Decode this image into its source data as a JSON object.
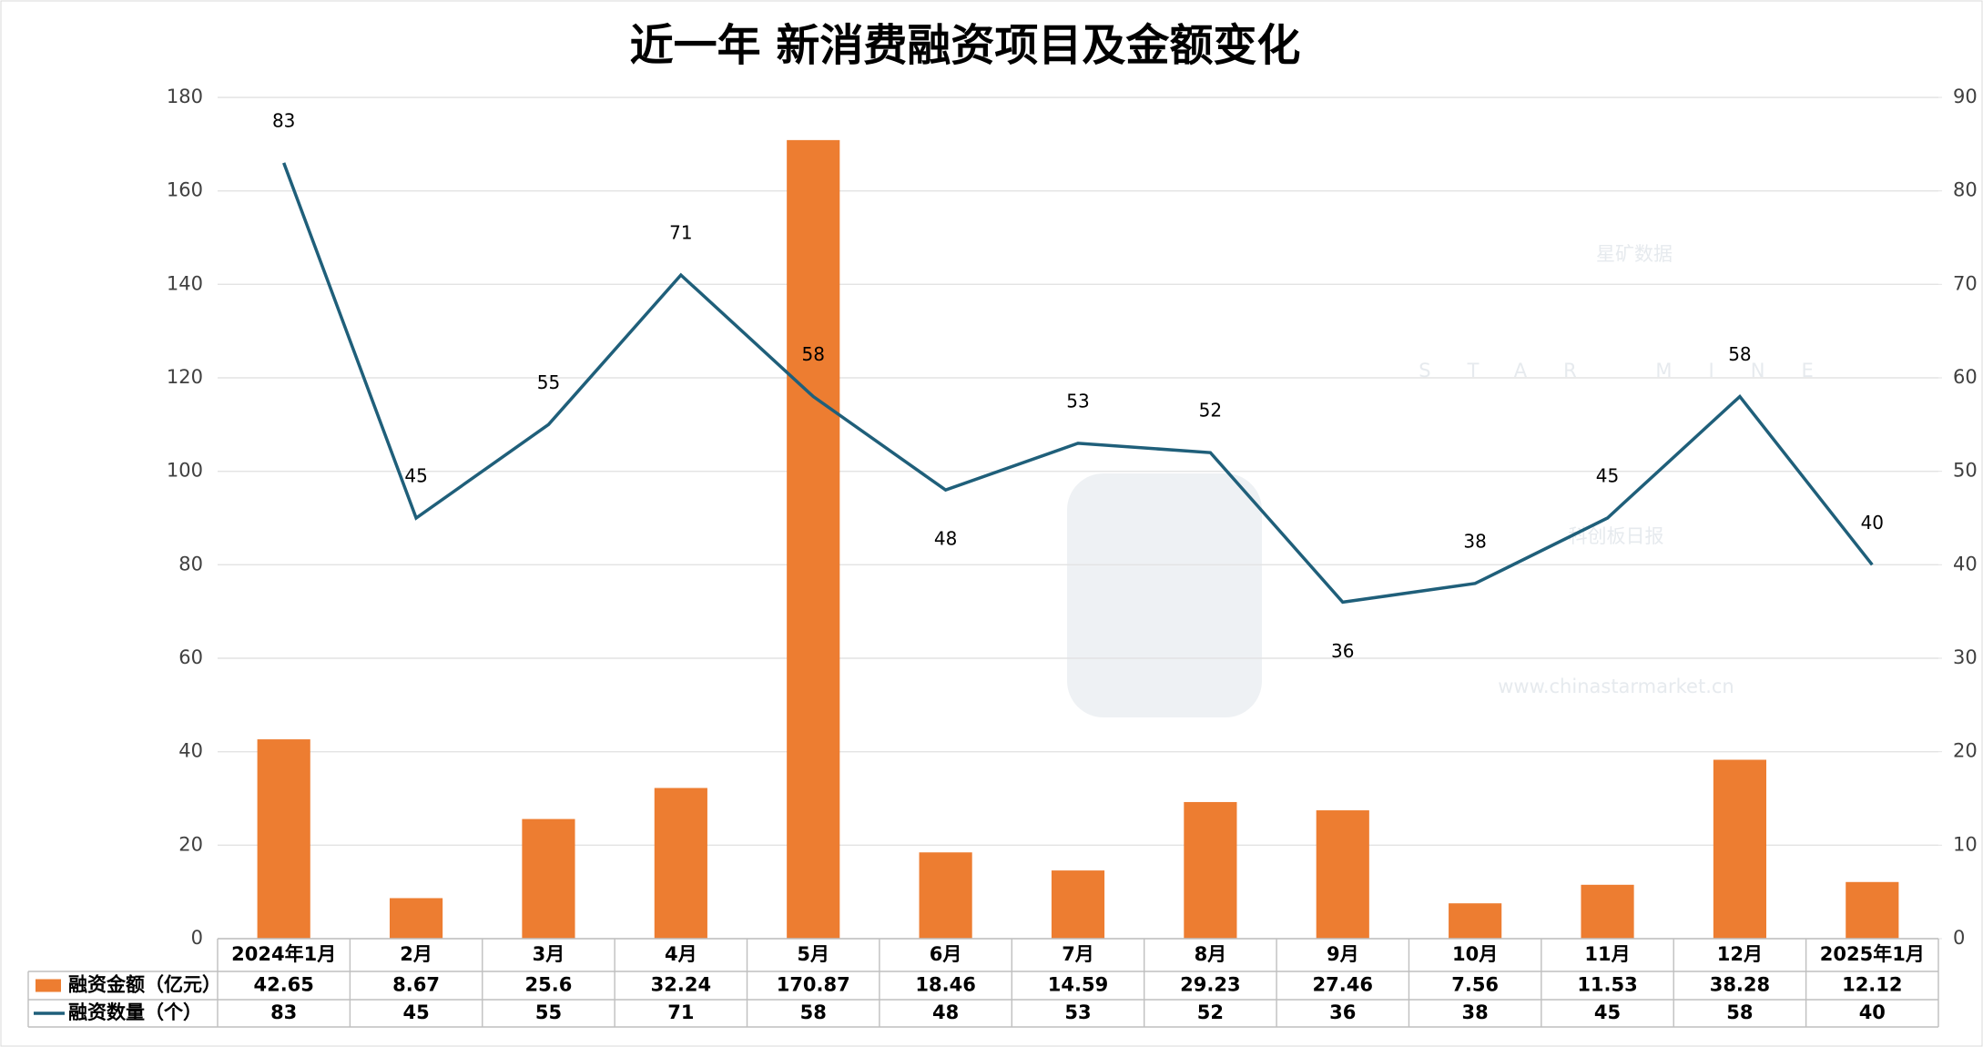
{
  "chart_data": {
    "type": "bar",
    "title": "近一年 新消费融资项目及金额变化",
    "categories": [
      "2024年1月",
      "2月",
      "3月",
      "4月",
      "5月",
      "6月",
      "7月",
      "8月",
      "9月",
      "10月",
      "11月",
      "12月",
      "2025年1月"
    ],
    "series": [
      {
        "name": "融资金额（亿元）",
        "color": "#ed7d31",
        "type": "bar",
        "values": [
          42.65,
          8.67,
          25.6,
          32.24,
          170.87,
          18.46,
          14.59,
          29.23,
          27.46,
          7.56,
          11.53,
          38.28,
          12.12
        ]
      },
      {
        "name": "融资数量（个）",
        "color": "#1f5f7a",
        "type": "line",
        "axis": "y2",
        "values": [
          83,
          45,
          55,
          71,
          58,
          48,
          53,
          52,
          36,
          38,
          45,
          58,
          40
        ]
      }
    ],
    "ylim": [
      0,
      180
    ],
    "yticks": [
      0,
      20,
      40,
      60,
      80,
      100,
      120,
      140,
      160,
      180
    ],
    "y2lim": [
      0,
      90
    ],
    "y2ticks": [
      0,
      10,
      20,
      30,
      40,
      50,
      60,
      70,
      80,
      90
    ],
    "grid": true,
    "watermark": [
      "星矿数据",
      "STAR MINE",
      "科创板日报",
      "www.chinastarmarket.cn"
    ]
  }
}
